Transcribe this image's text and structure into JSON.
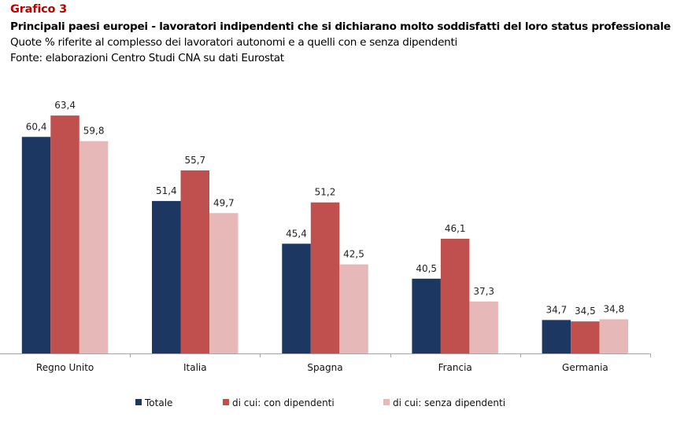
{
  "header": {
    "tag": "Grafico 3",
    "title": "Principali paesi europei - lavoratori indipendenti che si dichiarano molto soddisfatti del loro status professionale",
    "subtitle": "Quote % riferite al complesso dei lavoratori autonomi e a quelli con e senza dipendenti",
    "source": "Fonte: elaborazioni Centro Studi CNA su dati Eurostat"
  },
  "chart_data": {
    "type": "bar",
    "title": "Principali paesi europei - lavoratori indipendenti che si dichiarano molto soddisfatti del loro status professionale",
    "subtitle": "Quote % riferite al complesso dei lavoratori autonomi e a quelli con e senza dipendenti",
    "xlabel": "",
    "ylabel": "",
    "ylim": [
      30,
      65
    ],
    "grid": false,
    "legend_position": "bottom",
    "categories": [
      "Regno Unito",
      "Italia",
      "Spagna",
      "Francia",
      "Germania"
    ],
    "series": [
      {
        "name": "Totale",
        "color": "#1c3862",
        "values": [
          60.4,
          51.4,
          45.4,
          40.5,
          34.7
        ],
        "labels": [
          "60,4",
          "51,4",
          "45,4",
          "40,5",
          "34,7"
        ]
      },
      {
        "name": "di cui: con dipendenti",
        "color": "#c0504d",
        "values": [
          63.4,
          55.7,
          51.2,
          46.1,
          34.5
        ],
        "labels": [
          "63,4",
          "55,7",
          "51,2",
          "46,1",
          "34,5"
        ]
      },
      {
        "name": "di cui: senza dipendenti",
        "color": "#e6b8b7",
        "values": [
          59.8,
          49.7,
          42.5,
          37.3,
          34.8
        ],
        "labels": [
          "59,8",
          "49,7",
          "42,5",
          "37,3",
          "34,8"
        ]
      }
    ]
  }
}
